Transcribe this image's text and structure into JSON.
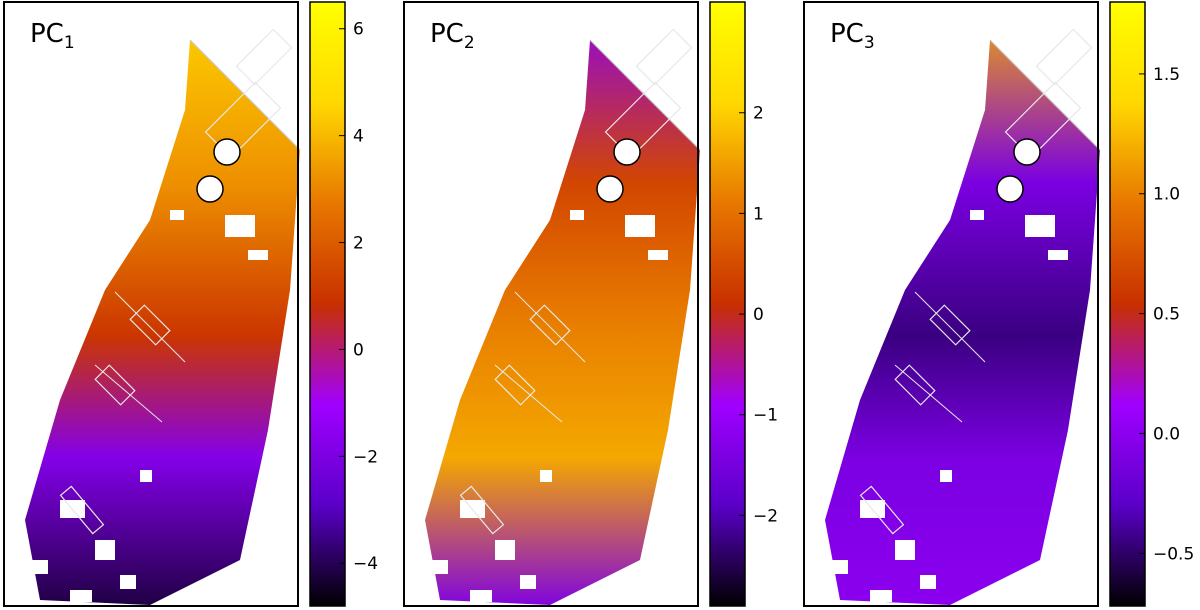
{
  "chart_data": [
    {
      "type": "heatmap",
      "title": "PC",
      "title_subscript": "1",
      "colorbar": {
        "ticks": [
          -4,
          -2,
          0,
          2,
          4,
          6
        ],
        "tick_labels": [
          "−4",
          "−2",
          "0",
          "2",
          "4",
          "6"
        ],
        "range": [
          -4.8,
          6.5
        ]
      },
      "map_levels": {
        "top": 4.6,
        "upper_mid": 3.2,
        "middle": 1.0,
        "lower_mid": -1.8,
        "bottom": -4.2
      }
    },
    {
      "type": "heatmap",
      "title": "PC",
      "title_subscript": "2",
      "colorbar": {
        "ticks": [
          -2,
          -1,
          0,
          1,
          2
        ],
        "tick_labels": [
          "−2",
          "−1",
          "0",
          "1",
          "2"
        ],
        "range": [
          -2.9,
          3.1
        ]
      },
      "map_levels": {
        "top": -1.2,
        "upper_mid": 0.4,
        "middle": 1.2,
        "lower_mid": 1.6,
        "bottom": -1.4
      }
    },
    {
      "type": "heatmap",
      "title": "PC",
      "title_subscript": "3",
      "colorbar": {
        "ticks": [
          -0.5,
          0.0,
          0.5,
          1.0,
          1.5
        ],
        "tick_labels": [
          "−0.5",
          "0.0",
          "0.5",
          "1.0",
          "1.5"
        ],
        "range": [
          -0.72,
          1.8
        ]
      },
      "map_levels": {
        "top": 1.2,
        "upper_mid": -0.1,
        "middle": -0.45,
        "lower_mid": -0.1,
        "bottom": 0.0
      }
    }
  ],
  "colormap": {
    "name": "gnuplot",
    "stops": [
      "#000000",
      "#5a00c8",
      "#a000ff",
      "#c83000",
      "#e87800",
      "#ffd800",
      "#ffff00"
    ]
  }
}
